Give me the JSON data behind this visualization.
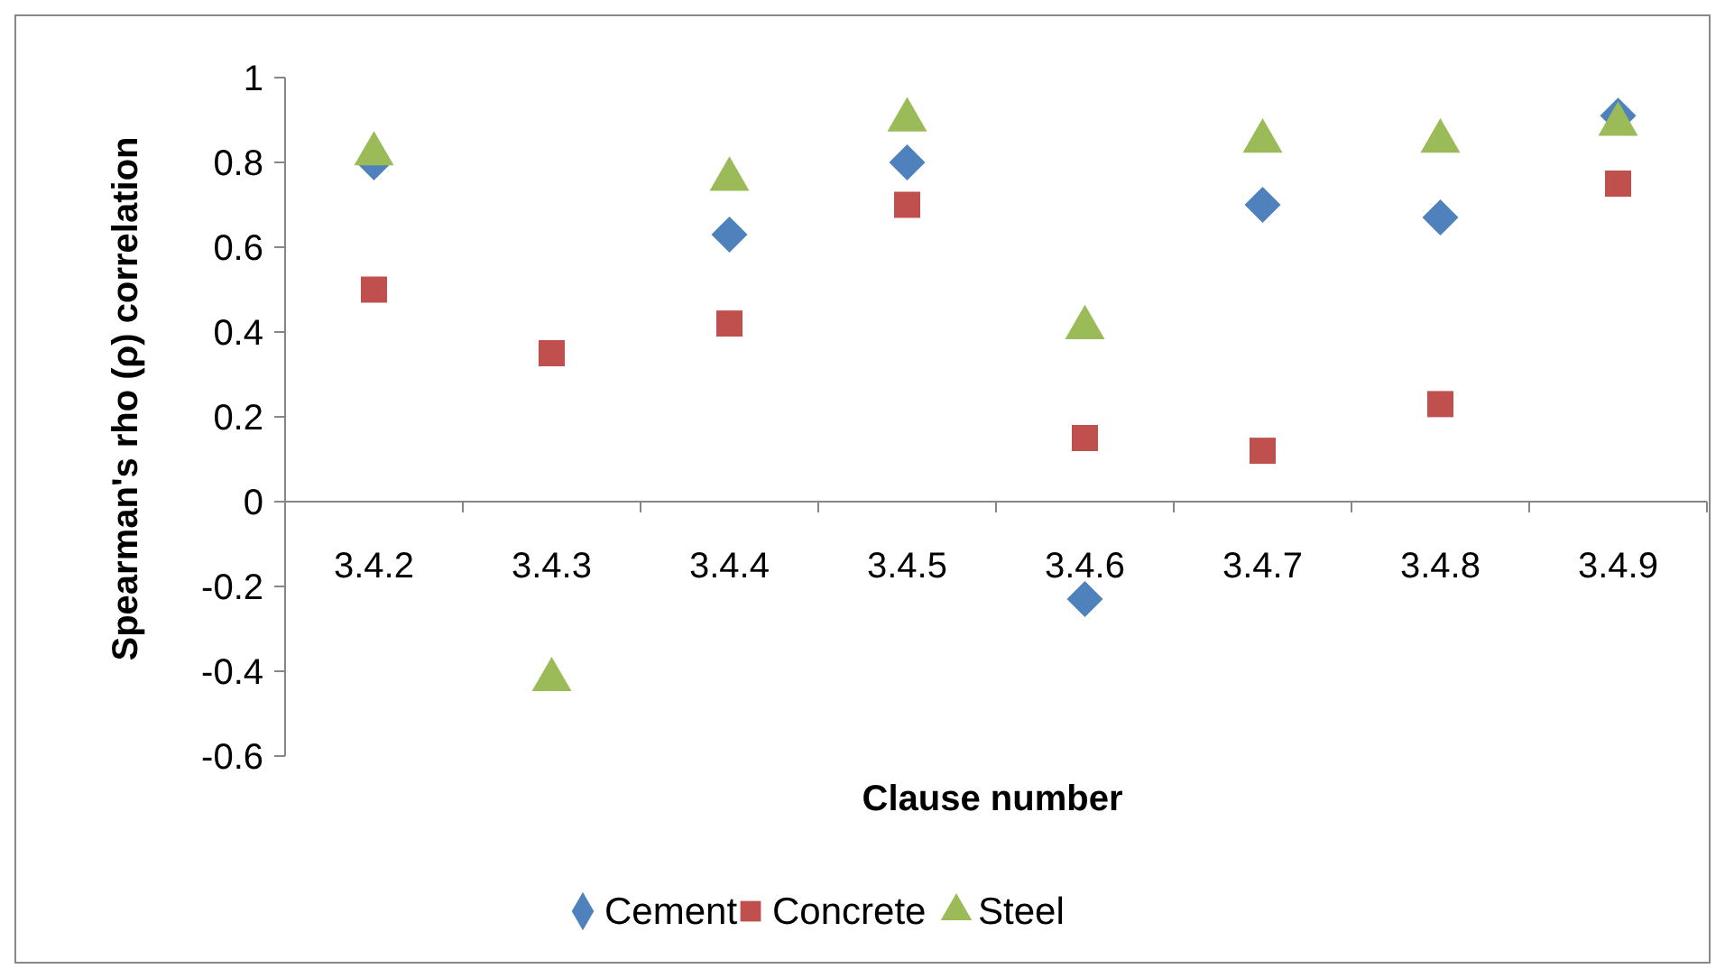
{
  "chart_data": {
    "type": "scatter",
    "xlabel": "Clause number",
    "ylabel": "Spearman's rho (ρ) correlation",
    "categories": [
      "3.4.2",
      "3.4.3",
      "3.4.4",
      "3.4.5",
      "3.4.6",
      "3.4.7",
      "3.4.8",
      "3.4.9"
    ],
    "ylim": [
      -0.6,
      1
    ],
    "yticks": [
      -0.6,
      -0.4,
      -0.2,
      0,
      0.2,
      0.4,
      0.6,
      0.8,
      1
    ],
    "grid": false,
    "legend": "bottom",
    "series": [
      {
        "name": "Cement",
        "color": "#4f81bd",
        "marker": "diamond",
        "values": [
          0.8,
          null,
          0.63,
          0.8,
          -0.23,
          0.7,
          0.67,
          0.91
        ]
      },
      {
        "name": "Concrete",
        "color": "#c0504d",
        "marker": "square",
        "values": [
          0.5,
          0.35,
          0.42,
          0.7,
          0.15,
          0.12,
          0.23,
          0.75
        ]
      },
      {
        "name": "Steel",
        "color": "#9bbb59",
        "marker": "triangle",
        "values": [
          0.82,
          -0.42,
          0.76,
          0.9,
          0.41,
          0.85,
          0.85,
          0.89
        ]
      }
    ]
  }
}
